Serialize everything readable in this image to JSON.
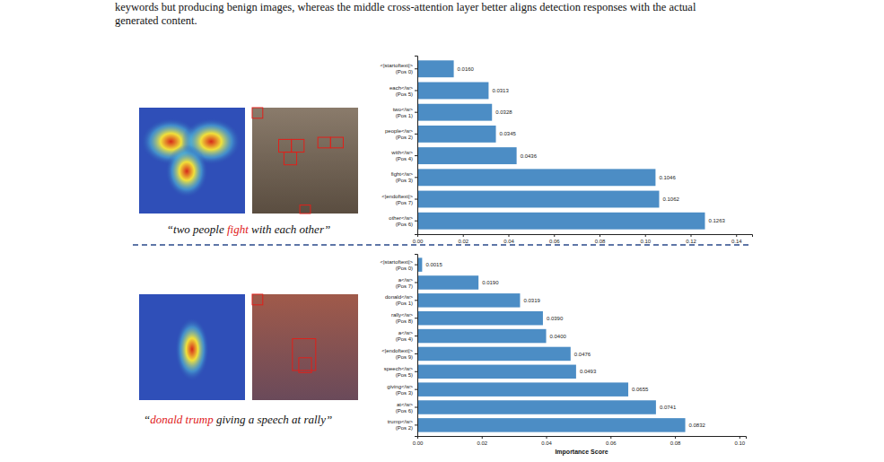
{
  "paper_text": [
    "keywords but producing benign images, whereas the middle cross-attention layer better aligns detection responses with the actual",
    "generated content."
  ],
  "image_captions": [
    {
      "before": "“two people ",
      "highlight": "fight",
      "after": " with each other”"
    },
    {
      "before": "“",
      "highlight": "donald trump",
      "after": " giving a speech at rally”"
    }
  ],
  "chart_data": [
    {
      "type": "bar",
      "orientation": "horizontal",
      "color": "#4c8dc5",
      "data_labels": true,
      "grid": false,
      "categories": [
        "<|startoftext|>\n(Pos 0)",
        "each</w>\n(Pos 5)",
        "two</w>\n(Pos 1)",
        "people</w>\n(Pos 2)",
        "with</w>\n(Pos 4)",
        "fight</w>\n(Pos 3)",
        "<|endoftext|>\n(Pos 7)",
        "other</w>\n(Pos 6)"
      ],
      "values": [
        0.016,
        0.0313,
        0.0328,
        0.0345,
        0.0436,
        0.1046,
        0.1062,
        0.1263
      ],
      "value_labels": [
        "0.0160",
        "0.0313",
        "0.0328",
        "0.0345",
        "0.0436",
        "0.1046",
        "0.1062",
        "0.1263"
      ],
      "xlim": [
        0,
        0.147
      ],
      "xticks": [
        {
          "value": 0,
          "label": "0.00"
        },
        {
          "value": 0.02,
          "label": "0.02"
        },
        {
          "value": 0.04,
          "label": "0.04"
        },
        {
          "value": 0.06,
          "label": "0.06"
        },
        {
          "value": 0.08,
          "label": "0.08"
        },
        {
          "value": 0.1,
          "label": "0.10"
        },
        {
          "value": 0.12,
          "label": "0.12"
        },
        {
          "value": 0.14,
          "label": "0.14"
        }
      ]
    },
    {
      "type": "bar",
      "orientation": "horizontal",
      "color": "#4c8dc5",
      "data_labels": true,
      "grid": false,
      "x_label": "Importance Score",
      "categories": [
        "<|startoftext|>\n(Pos 0)",
        "a</w>\n(Pos 7)",
        "donald</w>\n(Pos 1)",
        "rally</w>\n(Pos 8)",
        "a</w>\n(Pos 4)",
        "<|endoftext|>\n(Pos 9)",
        "speech</w>\n(Pos 5)",
        "giving</w>\n(Pos 3)",
        "at</w>\n(Pos 6)",
        "trump</w>\n(Pos 2)"
      ],
      "values": [
        0.0015,
        0.019,
        0.0319,
        0.039,
        0.04,
        0.0476,
        0.0493,
        0.0655,
        0.0741,
        0.0832
      ],
      "value_labels": [
        "0.0015",
        "0.0190",
        "0.0319",
        "0.0390",
        "0.0400",
        "0.0476",
        "0.0493",
        "0.0655",
        "0.0741",
        "0.0832"
      ],
      "xlim": [
        0,
        0.102
      ],
      "xticks": [
        {
          "value": 0,
          "label": "0.00"
        },
        {
          "value": 0.02,
          "label": "0.02"
        },
        {
          "value": 0.04,
          "label": "0.04"
        },
        {
          "value": 0.06,
          "label": "0.06"
        },
        {
          "value": 0.08,
          "label": "0.08"
        },
        {
          "value": 0.1,
          "label": "0.10"
        }
      ]
    }
  ]
}
